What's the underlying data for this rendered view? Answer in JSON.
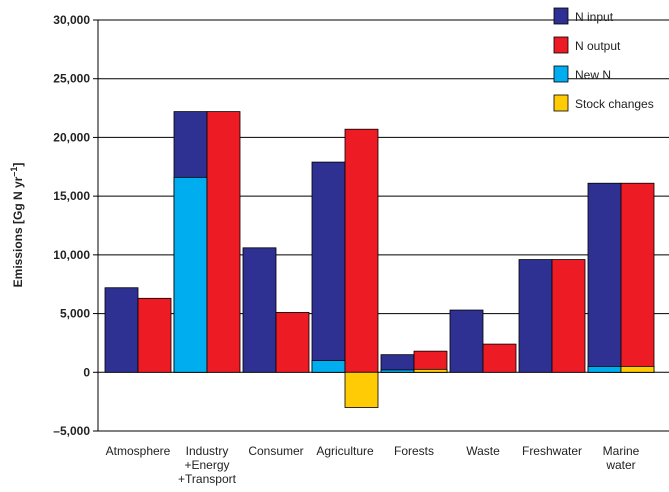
{
  "chart_data": {
    "type": "bar",
    "stacked_pairs": true,
    "categories": [
      [
        "Atmosphere"
      ],
      [
        "Industry",
        "+Energy",
        "+Transport"
      ],
      [
        "Consumer"
      ],
      [
        "Agriculture"
      ],
      [
        "Forests"
      ],
      [
        "Waste"
      ],
      [
        "Freshwater"
      ],
      [
        "Marine",
        "water"
      ]
    ],
    "ylabel": "Emissions [Gg N yr",
    "ylabel_superscript": "–1",
    "ylabel_close": "]",
    "ylim": [
      -5000,
      30000
    ],
    "yticks": [
      -5000,
      0,
      5000,
      10000,
      15000,
      20000,
      25000,
      30000
    ],
    "ytick_labels": [
      "–5,000",
      "0",
      "5,000",
      "10,000",
      "15,000",
      "20,000",
      "25,000",
      "30,000"
    ],
    "grid": "horizontal",
    "legend_position": "top-right",
    "series": [
      {
        "name": "N input",
        "color": "#2e3192",
        "values": [
          7200,
          22200,
          10600,
          17900,
          1500,
          5300,
          9600,
          16100
        ]
      },
      {
        "name": "N output",
        "color": "#ed1c24",
        "values": [
          6300,
          22200,
          5100,
          20700,
          1800,
          2400,
          9600,
          16100
        ]
      },
      {
        "name": "New N",
        "color": "#00aeef",
        "values": [
          0,
          16600,
          0,
          1000,
          200,
          0,
          0,
          500
        ]
      },
      {
        "name": "Stock changes",
        "color": "#ffcb05",
        "values": [
          0,
          0,
          0,
          -3000,
          250,
          0,
          0,
          500
        ]
      }
    ]
  }
}
